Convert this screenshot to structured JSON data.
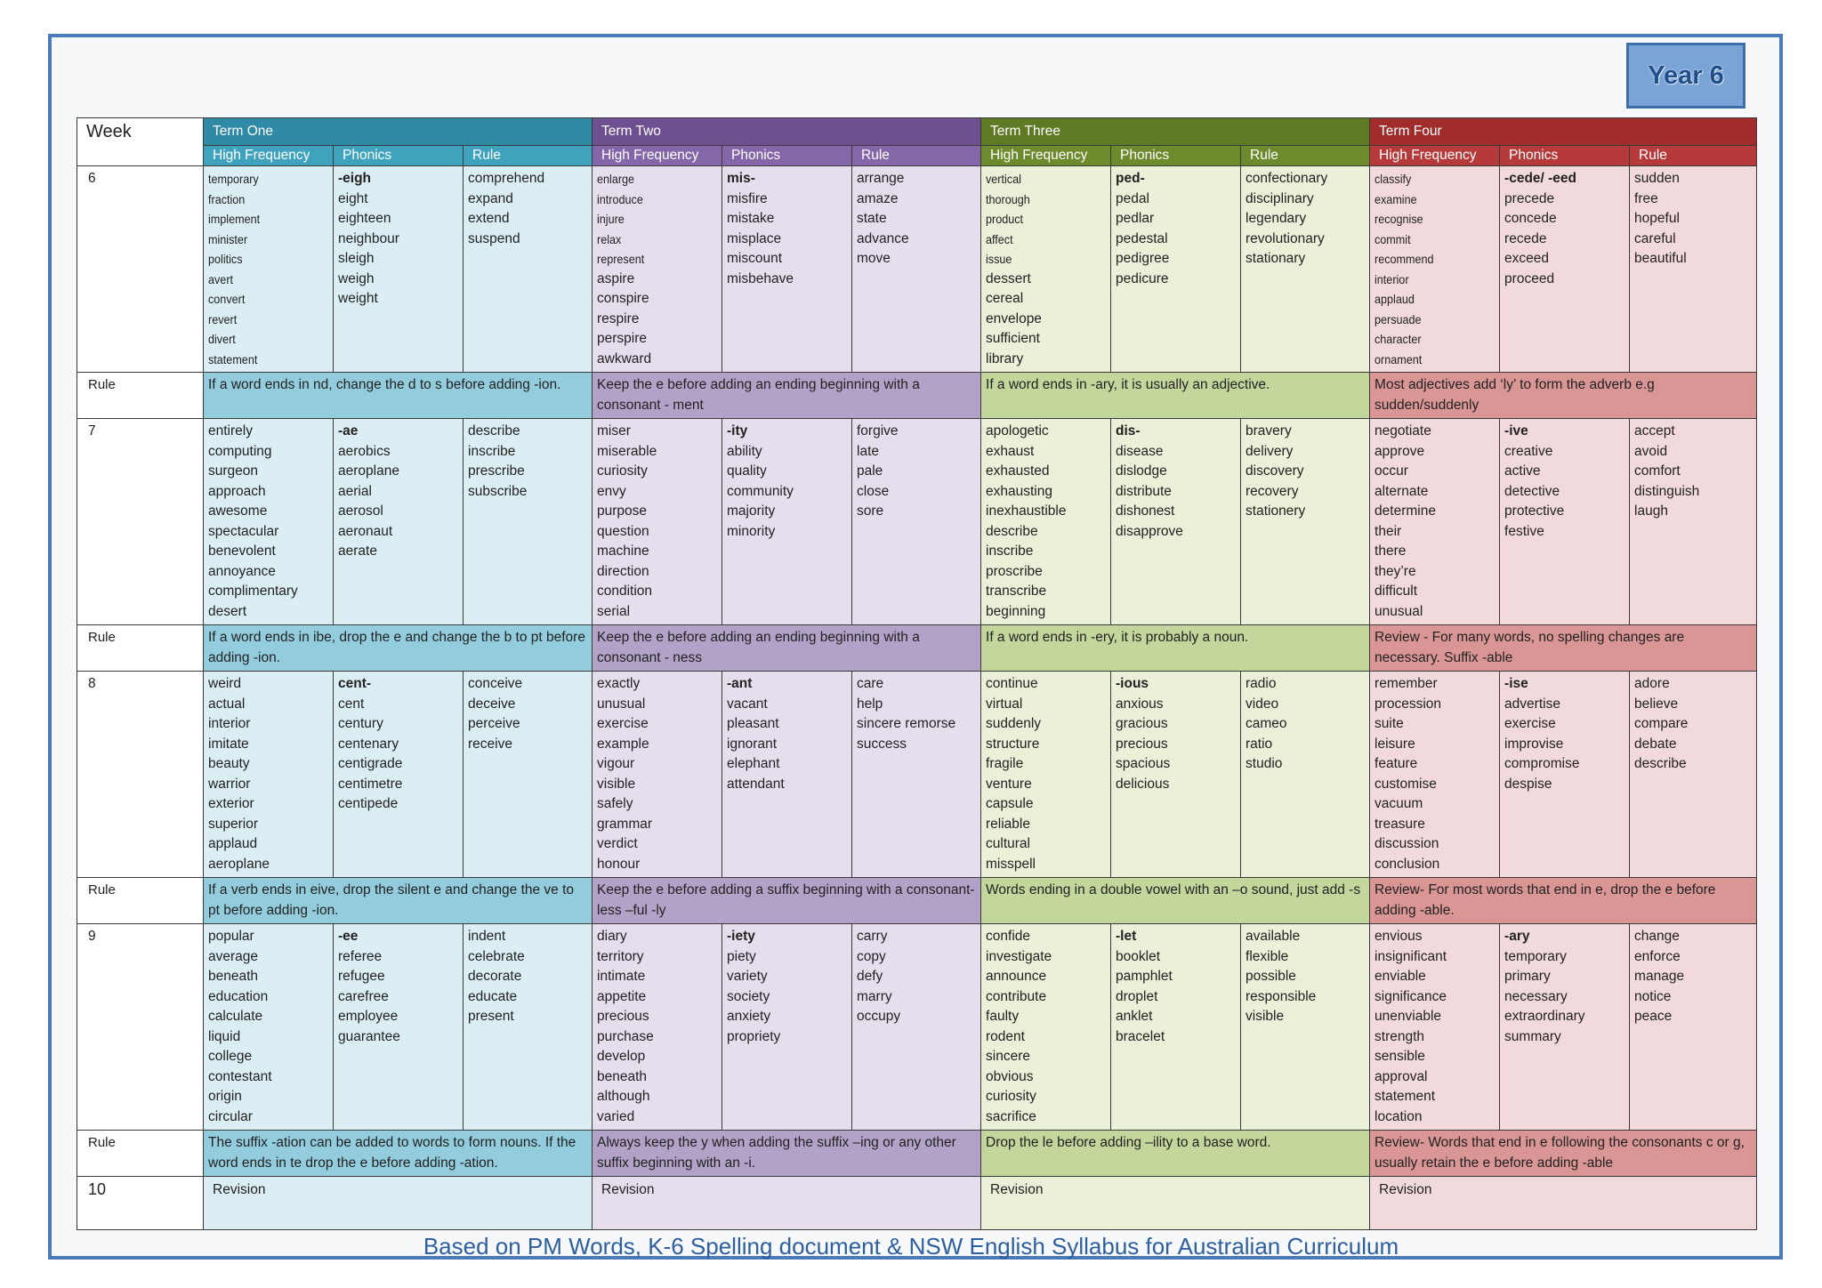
{
  "year_badge": "Year 6",
  "header": {
    "week_label": "Week",
    "terms": [
      "Term One",
      "Term Two",
      "Term Three",
      "Term Four"
    ],
    "subheads": [
      "High Frequency",
      "Phonics",
      "Rule"
    ]
  },
  "weeks": [
    {
      "week": "6",
      "terms": [
        {
          "hf": [
            "temporary",
            "fraction",
            "implement",
            "minister",
            "politics",
            "avert",
            "convert",
            "revert",
            "divert",
            "statement"
          ],
          "ph": [
            "-eigh",
            "eight",
            "eighteen",
            "neighbour",
            "sleigh",
            "weigh",
            "weight"
          ],
          "ru": [
            "comprehend",
            "expand",
            "extend",
            "suspend"
          ]
        },
        {
          "hf": [
            "enlarge",
            "introduce",
            "injure",
            "relax",
            "represent",
            "aspire",
            "conspire",
            "respire",
            "perspire",
            "awkward"
          ],
          "ph": [
            "mis-",
            "misfire",
            "mistake",
            "misplace",
            "miscount",
            "misbehave"
          ],
          "ru": [
            "arrange",
            "amaze",
            "state",
            "advance",
            "move"
          ]
        },
        {
          "hf": [
            "vertical",
            "thorough",
            "product",
            "affect",
            "issue",
            "dessert",
            "cereal",
            "envelope",
            "sufficient",
            "library"
          ],
          "ph": [
            "ped-",
            "pedal",
            "pedlar",
            "pedestal",
            "pedigree",
            "pedicure"
          ],
          "ru": [
            "confectionary",
            "disciplinary",
            "legendary",
            "revolutionary",
            "stationary"
          ]
        },
        {
          "hf": [
            "classify",
            "examine",
            "recognise",
            "commit",
            "recommend",
            "interior",
            "applaud",
            "persuade",
            "character",
            "ornament"
          ],
          "ph": [
            "-cede/ -eed",
            "precede",
            "concede",
            "recede",
            "exceed",
            "proceed"
          ],
          "ru": [
            "sudden",
            "free",
            "hopeful",
            "careful",
            "beautiful"
          ]
        }
      ],
      "rule_label": "Rule",
      "rules": [
        "If a word ends in nd, change the d to s before adding -ion.",
        "Keep the e before adding an ending beginning with a consonant - ment",
        "If a word ends in -ary, it is usually an adjective.",
        "Most adjectives add ‘ly’ to form the adverb e.g sudden/suddenly"
      ]
    },
    {
      "week": "7",
      "terms": [
        {
          "hf": [
            "entirely",
            "computing",
            "surgeon",
            "approach",
            "awesome",
            "spectacular",
            "benevolent",
            "annoyance",
            "complimentary",
            "desert"
          ],
          "ph": [
            "-ae",
            "aerobics",
            "aeroplane",
            "aerial",
            "aerosol",
            "aeronaut",
            "aerate"
          ],
          "ru": [
            "describe",
            "inscribe",
            "prescribe",
            "subscribe"
          ]
        },
        {
          "hf": [
            "miser",
            "miserable",
            "curiosity",
            "envy",
            "purpose",
            "question",
            "machine",
            "direction",
            "condition",
            "serial"
          ],
          "ph": [
            "-ity",
            "ability",
            "quality",
            "community",
            "majority",
            "minority"
          ],
          "ru": [
            "forgive",
            "late",
            "pale",
            "close",
            "sore"
          ]
        },
        {
          "hf": [
            "apologetic",
            "exhaust",
            "exhausted",
            "exhausting",
            "inexhaustible",
            "describe",
            "inscribe",
            "proscribe",
            "transcribe",
            "beginning"
          ],
          "ph": [
            "dis-",
            "disease",
            "dislodge",
            "distribute",
            "dishonest",
            "disapprove"
          ],
          "ru": [
            "bravery",
            "delivery",
            "discovery",
            "recovery",
            "stationery"
          ]
        },
        {
          "hf": [
            "negotiate",
            "approve",
            "occur",
            "alternate",
            "determine",
            "their",
            "there",
            "they’re",
            "difficult",
            "unusual"
          ],
          "ph": [
            "-ive",
            "creative",
            "active",
            "detective",
            "protective",
            "festive"
          ],
          "ru": [
            "accept",
            "avoid",
            "comfort",
            "distinguish",
            "laugh"
          ]
        }
      ],
      "rule_label": "Rule",
      "rules": [
        "If a word ends in ibe, drop the e and change the b to pt before adding -ion.",
        "Keep the e before adding an ending beginning with a consonant - ness",
        "If a word ends in -ery, it is probably a noun.",
        "Review - For many words, no spelling changes are necessary. Suffix -able"
      ]
    },
    {
      "week": "8",
      "terms": [
        {
          "hf": [
            "weird",
            "actual",
            "interior",
            "imitate",
            "beauty",
            "warrior",
            "exterior",
            "superior",
            "applaud",
            "aeroplane"
          ],
          "ph": [
            "cent-",
            "cent",
            "century",
            "centenary",
            "centigrade",
            "centimetre",
            "centipede"
          ],
          "ru": [
            "conceive",
            "deceive",
            "perceive",
            "receive"
          ]
        },
        {
          "hf": [
            "exactly",
            "unusual",
            "exercise",
            "example",
            "vigour",
            "visible",
            "safely",
            "grammar",
            "verdict",
            "honour"
          ],
          "ph": [
            "-ant",
            "vacant",
            "pleasant",
            "ignorant",
            "elephant",
            "attendant"
          ],
          "ru": [
            "care",
            "help",
            "sincere remorse",
            "success"
          ]
        },
        {
          "hf": [
            "continue",
            "virtual",
            "suddenly",
            "structure",
            "fragile",
            "venture",
            "capsule",
            "reliable",
            "cultural",
            "misspell"
          ],
          "ph": [
            "-ious",
            "anxious",
            "gracious",
            "precious",
            "spacious",
            "delicious"
          ],
          "ru": [
            "radio",
            "video",
            "cameo",
            "ratio",
            "studio"
          ]
        },
        {
          "hf": [
            "remember",
            "procession",
            "suite",
            "leisure",
            "feature",
            "customise",
            "vacuum",
            "treasure",
            "discussion",
            "conclusion"
          ],
          "ph": [
            "-ise",
            "advertise",
            "exercise",
            "improvise",
            "compromise",
            "despise"
          ],
          "ru": [
            "adore",
            "believe",
            "compare",
            "debate",
            "describe"
          ]
        }
      ],
      "rule_label": "Rule",
      "rules": [
        "If a verb ends in eive, drop the silent e and change the ve to pt before adding -ion.",
        "Keep the e before adding a suffix beginning with a consonant- less –ful -ly",
        "Words ending in a double vowel with an –o sound, just add -s",
        "Review- For most words that end in e, drop the e before adding -able."
      ]
    },
    {
      "week": "9",
      "terms": [
        {
          "hf": [
            "popular",
            "average",
            "beneath",
            "education",
            "calculate",
            "liquid",
            "college",
            "contestant",
            "origin",
            "circular"
          ],
          "ph": [
            "-ee",
            "referee",
            "refugee",
            "carefree",
            "employee",
            "guarantee"
          ],
          "ru": [
            "indent",
            "celebrate",
            "decorate",
            "educate",
            "present"
          ]
        },
        {
          "hf": [
            "diary",
            "territory",
            "intimate",
            "appetite",
            "precious",
            "purchase",
            "develop",
            "beneath",
            "although",
            "varied"
          ],
          "ph": [
            "-iety",
            "piety",
            "variety",
            "society",
            "anxiety",
            "propriety"
          ],
          "ru": [
            "carry",
            "copy",
            "defy",
            "marry",
            "occupy"
          ]
        },
        {
          "hf": [
            "confide",
            "investigate",
            "announce",
            "contribute",
            "faulty",
            "rodent",
            "sincere",
            "obvious",
            "curiosity",
            "sacrifice"
          ],
          "ph": [
            "-let",
            "booklet",
            "pamphlet",
            "droplet",
            "anklet",
            "bracelet"
          ],
          "ru": [
            "available",
            "flexible",
            "possible",
            "responsible",
            "visible"
          ]
        },
        {
          "hf": [
            "envious",
            "insignificant",
            "enviable",
            "significance",
            "unenviable",
            "strength",
            "sensible",
            "approval",
            "statement",
            "location"
          ],
          "ph": [
            "-ary",
            "temporary",
            "primary",
            "necessary",
            "extraordinary",
            "summary"
          ],
          "ru": [
            "change",
            "enforce",
            "manage",
            "notice",
            "peace"
          ]
        }
      ],
      "rule_label": "Rule",
      "rules": [
        "The suffix -ation can be added to words to form nouns. If the word ends in te drop the e before adding -ation.",
        "Always keep the y when adding the suffix –ing or any other suffix beginning with an -i.",
        "Drop the le before adding –ility to a base word.",
        "Review- Words that end in e following the consonants c or g, usually retain the e before adding -able"
      ]
    }
  ],
  "week10": {
    "week": "10",
    "label": "Revision"
  },
  "footer": "Based on PM Words, K-6 Spelling document & NSW English Syllabus for Australian Curriculum"
}
